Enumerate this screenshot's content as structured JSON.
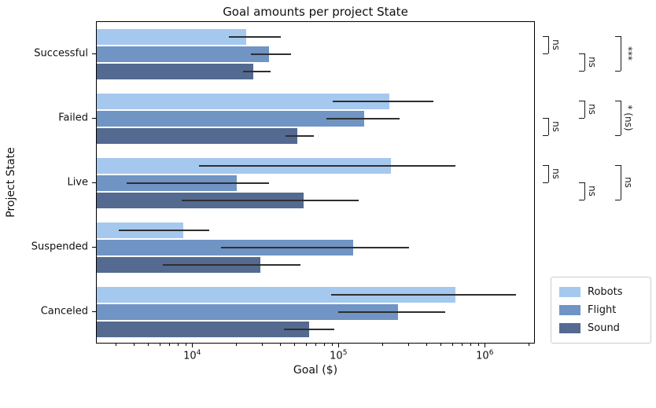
{
  "title": "Goal amounts per project State",
  "chart_data": {
    "type": "bar",
    "orientation": "horizontal",
    "title": "Goal amounts per project State",
    "xlabel": "Goal ($)",
    "ylabel": "Project State",
    "x_scale": "log",
    "xlim": [
      2200,
      2200000
    ],
    "x_tick_exponents": [
      4,
      5,
      6
    ],
    "grid": false,
    "legend_position": "lower right, outside plot",
    "categories": [
      "Successful",
      "Failed",
      "Live",
      "Suspended",
      "Canceled"
    ],
    "series": [
      {
        "name": "Robots",
        "color": "#a5c8ef",
        "values": [
          23000,
          220000,
          225000,
          8600,
          620000
        ],
        "err_low": [
          17500,
          90000,
          11000,
          3100,
          88000
        ],
        "err_high": [
          40000,
          440000,
          620000,
          13000,
          1620000
        ]
      },
      {
        "name": "Flight",
        "color": "#7094c4",
        "values": [
          33000,
          148000,
          20000,
          124000,
          252000
        ],
        "err_low": [
          25000,
          82000,
          3500,
          15500,
          99000
        ],
        "err_high": [
          47000,
          260000,
          33000,
          300000,
          530000
        ]
      },
      {
        "name": "Sound",
        "color": "#546a91",
        "values": [
          26000,
          52000,
          57000,
          29000,
          62000
        ],
        "err_low": [
          22000,
          43000,
          8400,
          6200,
          42000
        ],
        "err_high": [
          34000,
          67000,
          136000,
          54000,
          93000
        ]
      }
    ],
    "error_bar_color": "#2f2f2f",
    "annotations": [
      {
        "group": "Successful",
        "pair": [
          0,
          1
        ],
        "column": 0,
        "label": "ns"
      },
      {
        "group": "Successful",
        "pair": [
          1,
          2
        ],
        "column": 1,
        "label": "ns"
      },
      {
        "group": "Successful",
        "pair": [
          0,
          2
        ],
        "column": 2,
        "label": "***"
      },
      {
        "group": "Failed",
        "pair": [
          1,
          2
        ],
        "column": 0,
        "label": "ns"
      },
      {
        "group": "Failed",
        "pair": [
          0,
          1
        ],
        "column": 1,
        "label": "ns"
      },
      {
        "group": "Failed",
        "pair": [
          0,
          2
        ],
        "column": 2,
        "label": "* (ns)"
      },
      {
        "group": "Live",
        "pair": [
          0,
          1
        ],
        "column": 0,
        "label": "ns"
      },
      {
        "group": "Live",
        "pair": [
          1,
          2
        ],
        "column": 1,
        "label": "ns"
      },
      {
        "group": "Live",
        "pair": [
          0,
          2
        ],
        "column": 2,
        "label": "ns"
      }
    ]
  }
}
